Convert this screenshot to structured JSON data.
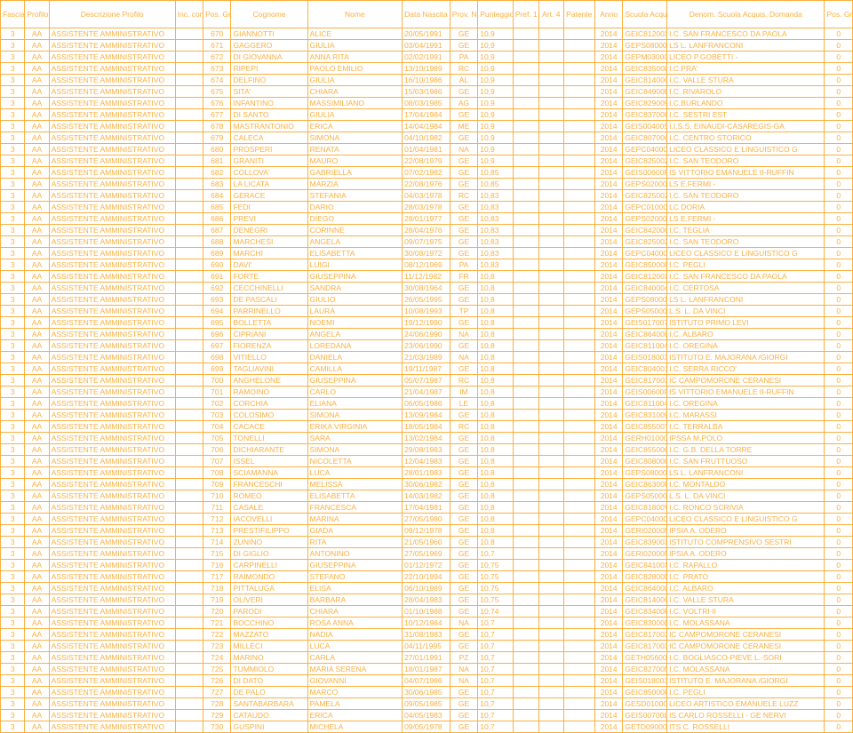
{
  "columns": [
    {
      "key": "fascia",
      "label": "Fascia",
      "cls": "c-fascia"
    },
    {
      "key": "profilo",
      "label": "Profilo",
      "cls": "c-profilo"
    },
    {
      "key": "descr",
      "label": "Descrizione Profilo",
      "cls": "c-descr"
    },
    {
      "key": "ris",
      "label": "Inc. con Riserva",
      "cls": "c-ris"
    },
    {
      "key": "grad",
      "label": "Pos. Graduatoria",
      "cls": "c-grad"
    },
    {
      "key": "cognome",
      "label": "Cognome",
      "cls": "c-cognome"
    },
    {
      "key": "nome",
      "label": "Nome",
      "cls": "c-nome"
    },
    {
      "key": "data",
      "label": "Data Nascita",
      "cls": "c-data"
    },
    {
      "key": "prov",
      "label": "Prov. Nascita",
      "cls": "c-prov"
    },
    {
      "key": "punt",
      "label": "Punteggio",
      "cls": "c-punt"
    },
    {
      "key": "pref",
      "label": "Pref. 1",
      "cls": "c-pref"
    },
    {
      "key": "art",
      "label": "Art. 4",
      "cls": "c-art"
    },
    {
      "key": "pat",
      "label": "Patente",
      "cls": "c-pat"
    },
    {
      "key": "anno",
      "label": "Anno",
      "cls": "c-anno"
    },
    {
      "key": "scuola",
      "label": "Scuola Acquis. Domanda",
      "cls": "c-scuola"
    },
    {
      "key": "denom",
      "label": "Denom. Scuola Acquis. Domanda",
      "cls": "c-denom"
    },
    {
      "key": "posprov",
      "label": "Pos. Grad. Prov.",
      "cls": "c-posprov"
    }
  ],
  "rows": [
    [
      "3",
      "AA",
      "ASSISTENTE AMMINISTRATIVO",
      "",
      "670",
      "GIANNOTTI",
      "ALICE",
      "20/05/1991",
      "GE",
      "10,9",
      "",
      "",
      "",
      "2014",
      "GEIC81200X",
      "I.C.  SAN FRANCESCO DA PAOLA",
      "0"
    ],
    [
      "3",
      "AA",
      "ASSISTENTE AMMINISTRATIVO",
      "",
      "671",
      "GAGGERO",
      "GIULIA",
      "03/04/1991",
      "GE",
      "10,9",
      "",
      "",
      "",
      "2014",
      "GEPS080004",
      "LS L. LANFRANCONI",
      "0"
    ],
    [
      "3",
      "AA",
      "ASSISTENTE AMMINISTRATIVO",
      "",
      "672",
      "DI GIOVANNA",
      "ANNA RITA",
      "02/02/1991",
      "PA",
      "10,9",
      "",
      "",
      "",
      "2014",
      "GEPM030004",
      "LICEO  P.GOBETTI -",
      "0"
    ],
    [
      "3",
      "AA",
      "ASSISTENTE AMMINISTRATIVO",
      "",
      "673",
      "RIPEPI",
      "PAOLO EMILIO",
      "13/10/1989",
      "RC",
      "10,9",
      "",
      "",
      "",
      "2014",
      "GEIC83500L",
      "I.C.PRA'",
      "0"
    ],
    [
      "3",
      "AA",
      "ASSISTENTE AMMINISTRATIVO",
      "",
      "674",
      "DELFINO",
      "GIULIA",
      "16/10/1986",
      "AL",
      "10,9",
      "",
      "",
      "",
      "2014",
      "GEIC81400G",
      "I.C. VALLE STURA",
      "0"
    ],
    [
      "3",
      "AA",
      "ASSISTENTE AMMINISTRATIVO",
      "",
      "675",
      "SITA'",
      "CHIARA",
      "15/03/1986",
      "GE",
      "10,9",
      "",
      "",
      "",
      "2014",
      "GEIC84900E",
      "I.C. RIVAROLO",
      "0"
    ],
    [
      "3",
      "AA",
      "ASSISTENTE AMMINISTRATIVO",
      "",
      "676",
      "INFANTINO",
      "MASSIMILIANO",
      "08/03/1985",
      "AG",
      "10,9",
      "",
      "",
      "",
      "2014",
      "GEIC829009",
      "I.C.BURLANDO",
      "0"
    ],
    [
      "3",
      "AA",
      "ASSISTENTE AMMINISTRATIVO",
      "",
      "677",
      "DI SANTO",
      "GIULIA",
      "17/04/1984",
      "GE",
      "10,9",
      "",
      "",
      "",
      "2014",
      "GEIC837008",
      "I.C. SESTRI EST",
      "0"
    ],
    [
      "3",
      "AA",
      "ASSISTENTE AMMINISTRATIVO",
      "",
      "678",
      "MASTRANTONIO",
      "ERICA",
      "14/04/1984",
      "ME",
      "10,9",
      "",
      "",
      "",
      "2014",
      "GEIS004005",
      "I.I.S.S.  EINAUDI-CASAREGIS-GA",
      "0"
    ],
    [
      "3",
      "AA",
      "ASSISTENTE AMMINISTRATIVO",
      "",
      "679",
      "CALECA",
      "SIMONA",
      "04/10/1982",
      "GE",
      "10,9",
      "",
      "",
      "",
      "2014",
      "GEIC80700C",
      "I.C.  CENTRO STORICO",
      "0"
    ],
    [
      "3",
      "AA",
      "ASSISTENTE AMMINISTRATIVO",
      "",
      "680",
      "PROSPERI",
      "RENATA",
      "01/04/1981",
      "NA",
      "10,9",
      "",
      "",
      "",
      "2014",
      "GEPC04000E",
      "LICEO CLASSICO E LINGUISTICO G",
      "0"
    ],
    [
      "3",
      "AA",
      "ASSISTENTE AMMINISTRATIVO",
      "",
      "681",
      "GRANITI",
      "MAURO",
      "22/08/1979",
      "GE",
      "10,9",
      "",
      "",
      "",
      "2014",
      "GEIC825002",
      "I.C. SAN TEODORO",
      "0"
    ],
    [
      "3",
      "AA",
      "ASSISTENTE AMMINISTRATIVO",
      "",
      "682",
      "COLLOVA'",
      "GABRIELLA",
      "07/02/1982",
      "GE",
      "10,85",
      "",
      "",
      "",
      "2014",
      "GEIS00600R",
      "IS VITTORIO EMANUELE II-RUFFIN",
      "0"
    ],
    [
      "3",
      "AA",
      "ASSISTENTE AMMINISTRATIVO",
      "",
      "683",
      "LA LICATA",
      "MARZIA",
      "22/08/1976",
      "GE",
      "10,85",
      "",
      "",
      "",
      "2014",
      "GEPS02000C",
      "LS E.FERMI -",
      "0"
    ],
    [
      "3",
      "AA",
      "ASSISTENTE AMMINISTRATIVO",
      "",
      "684",
      "GERACE",
      "STEFANIA",
      "04/03/1978",
      "RC",
      "10,83",
      "",
      "",
      "",
      "2014",
      "GEIC825002",
      "I.C. SAN TEODORO",
      "0"
    ],
    [
      "3",
      "AA",
      "ASSISTENTE AMMINISTRATIVO",
      "",
      "685",
      "FEDI",
      "DARIO",
      "28/03/1978",
      "GE",
      "10,83",
      "",
      "",
      "",
      "2014",
      "GEPC01000P",
      "LC DORIA",
      "0"
    ],
    [
      "3",
      "AA",
      "ASSISTENTE AMMINISTRATIVO",
      "",
      "686",
      "PREVI",
      "DIEGO",
      "28/01/1977",
      "GE",
      "10,83",
      "",
      "",
      "",
      "2014",
      "GEPS02000C",
      "LS E.FERMI -",
      "0"
    ],
    [
      "3",
      "AA",
      "ASSISTENTE AMMINISTRATIVO",
      "",
      "687",
      "DENEGRI",
      "CORINNE",
      "28/04/1976",
      "GE",
      "10,83",
      "",
      "",
      "",
      "2014",
      "GEIC84200Q",
      "I.C. TEGLIA",
      "0"
    ],
    [
      "3",
      "AA",
      "ASSISTENTE AMMINISTRATIVO",
      "",
      "688",
      "MARCHESI",
      "ANGELA",
      "09/07/1975",
      "GE",
      "10,83",
      "",
      "",
      "",
      "2014",
      "GEIC825002",
      "I.C.  SAN TEODORO",
      "0"
    ],
    [
      "3",
      "AA",
      "ASSISTENTE AMMINISTRATIVO",
      "",
      "689",
      "MARCHI",
      "ELISABETTA",
      "30/08/1972",
      "GE",
      "10,83",
      "",
      "",
      "",
      "2014",
      "GEPC04000E",
      "LICEO CLASSICO E LINGUISTICO G",
      "0"
    ],
    [
      "3",
      "AA",
      "ASSISTENTE AMMINISTRATIVO",
      "",
      "690",
      "DAVI'",
      "LUIGI",
      "08/12/1969",
      "PA",
      "10,83",
      "",
      "",
      "",
      "2014",
      "GEIC85000P",
      "I.C. PEGLI",
      "0"
    ],
    [
      "3",
      "AA",
      "ASSISTENTE AMMINISTRATIVO",
      "",
      "691",
      "FORTE",
      "GIUSEPPINA",
      "11/12/1982",
      "FR",
      "10,8",
      "",
      "",
      "",
      "2014",
      "GEIC81200X",
      "I.C.  SAN FRANCESCO DA PAOLA",
      "0"
    ],
    [
      "3",
      "AA",
      "ASSISTENTE AMMINISTRATIVO",
      "",
      "692",
      "CECCHINELLI",
      "SANDRA",
      "30/08/1964",
      "GE",
      "10,8",
      "",
      "",
      "",
      "2014",
      "GEIC840004",
      "I.C. CERTOSA",
      "0"
    ],
    [
      "3",
      "AA",
      "ASSISTENTE AMMINISTRATIVO",
      "",
      "693",
      "DE PASCALI",
      "GIULIO",
      "26/05/1995",
      "GE",
      "10,8",
      "",
      "",
      "",
      "2014",
      "GEPS080004",
      "LS L. LANFRANCONI",
      "0"
    ],
    [
      "3",
      "AA",
      "ASSISTENTE AMMINISTRATIVO",
      "",
      "694",
      "PARRINELLO",
      "LAURA",
      "10/08/1993",
      "TP",
      "10,8",
      "",
      "",
      "",
      "2014",
      "GEPS050008",
      "L.S.  L. DA VINCI",
      "0"
    ],
    [
      "3",
      "AA",
      "ASSISTENTE AMMINISTRATIVO",
      "",
      "695",
      "BOLLETTA",
      "NOEMI",
      "19/12/1990",
      "GE",
      "10,8",
      "",
      "",
      "",
      "2014",
      "GEIS017007",
      "ISTITUTO  PRIMO LEVI",
      "0"
    ],
    [
      "3",
      "AA",
      "ASSISTENTE AMMINISTRATIVO",
      "",
      "696",
      "CIPRIANI",
      "ANGELA",
      "24/06/1990",
      "NA",
      "10,8",
      "",
      "",
      "",
      "2014",
      "GEIC86400L",
      "I.C. ALBARO",
      "0"
    ],
    [
      "3",
      "AA",
      "ASSISTENTE AMMINISTRATIVO",
      "",
      "697",
      "FIORENZA",
      "LOREDANA",
      "23/06/1990",
      "GE",
      "10,8",
      "",
      "",
      "",
      "2014",
      "GEIC811004",
      "I.C. OREGINA",
      "0"
    ],
    [
      "3",
      "AA",
      "ASSISTENTE AMMINISTRATIVO",
      "",
      "698",
      "VITIELLO",
      "DANIELA",
      "21/03/1989",
      "NA",
      "10,8",
      "",
      "",
      "",
      "2014",
      "GEIS018003",
      "ISTITUTO  E. MAJORANA /GIORGI",
      "0"
    ],
    [
      "3",
      "AA",
      "ASSISTENTE AMMINISTRATIVO",
      "",
      "699",
      "TAGLIAVINI",
      "CAMILLA",
      "19/11/1987",
      "GE",
      "10,8",
      "",
      "",
      "",
      "2014",
      "GEIC804001",
      "I.C. SERRA RICCO'",
      "0"
    ],
    [
      "3",
      "AA",
      "ASSISTENTE AMMINISTRATIVO",
      "",
      "700",
      "ANGHELONE",
      "GIUSEPPINA",
      "05/07/1987",
      "RC",
      "10,8",
      "",
      "",
      "",
      "2014",
      "GEIC817003",
      "IC CAMPOMORONE CERANESI",
      "0"
    ],
    [
      "3",
      "AA",
      "ASSISTENTE AMMINISTRATIVO",
      "",
      "701",
      "RAMOINO",
      "CARLO",
      "21/04/1987",
      "IM",
      "10,8",
      "",
      "",
      "",
      "2014",
      "GEIS00600R",
      "IS VITTORIO EMANUELE II-RUFFIN",
      "0"
    ],
    [
      "3",
      "AA",
      "ASSISTENTE AMMINISTRATIVO",
      "",
      "702",
      "CORCHIA",
      "ELIANA",
      "06/05/1986",
      "LE",
      "10,8",
      "",
      "",
      "",
      "2014",
      "GEIC811004",
      "I.C. OREGINA",
      "0"
    ],
    [
      "3",
      "AA",
      "ASSISTENTE AMMINISTRATIVO",
      "",
      "703",
      "COLOSIMO",
      "SIMONA",
      "13/09/1984",
      "GE",
      "10,8",
      "",
      "",
      "",
      "2014",
      "GEIC831009",
      "I.C. MARASSI",
      "0"
    ],
    [
      "3",
      "AA",
      "ASSISTENTE AMMINISTRATIVO",
      "",
      "704",
      "CACACE",
      "ERIKA VIRGINIA",
      "18/05/1984",
      "RC",
      "10,8",
      "",
      "",
      "",
      "2014",
      "GEIC85500T",
      "I.C. TERRALBA",
      "0"
    ],
    [
      "3",
      "AA",
      "ASSISTENTE AMMINISTRATIVO",
      "",
      "705",
      "TONELLI",
      "SARA",
      "13/02/1984",
      "GE",
      "10,8",
      "",
      "",
      "",
      "2014",
      "GERH01000G",
      "IPSSA  M.POLO",
      "0"
    ],
    [
      "3",
      "AA",
      "ASSISTENTE AMMINISTRATIVO",
      "",
      "706",
      "DICHIARANTE",
      "SIMONA",
      "29/08/1983",
      "GE",
      "10,8",
      "",
      "",
      "",
      "2014",
      "GEIC85500G",
      "I.C.  G.B. DELLA TORRE",
      "0"
    ],
    [
      "3",
      "AA",
      "ASSISTENTE AMMINISTRATIVO",
      "",
      "707",
      "ISSEL",
      "NICOLETTA",
      "12/04/1983",
      "GE",
      "10,8",
      "",
      "",
      "",
      "2014",
      "GEIC808008",
      "I.C. SAN FRUTTUOSO",
      "0"
    ],
    [
      "3",
      "AA",
      "ASSISTENTE AMMINISTRATIVO",
      "",
      "708",
      "SCIAMANNA",
      "LUCA",
      "28/01/1983",
      "GE",
      "10,8",
      "",
      "",
      "",
      "2014",
      "GEPS080004",
      "LS L. LANFRANCONI",
      "0"
    ],
    [
      "3",
      "AA",
      "ASSISTENTE AMMINISTRATIVO",
      "",
      "709",
      "FRANCESCHI",
      "MELISSA",
      "30/06/1982",
      "GE",
      "10,8",
      "",
      "",
      "",
      "2014",
      "GEIC86300R",
      "I.C.  MONTALDO",
      "0"
    ],
    [
      "3",
      "AA",
      "ASSISTENTE AMMINISTRATIVO",
      "",
      "710",
      "ROMEO",
      "ELISABETTA",
      "14/03/1982",
      "GE",
      "10,8",
      "",
      "",
      "",
      "2014",
      "GEPS050008",
      "L.S.  L. DA VINCI",
      "0"
    ],
    [
      "3",
      "AA",
      "ASSISTENTE AMMINISTRATIVO",
      "",
      "711",
      "CASALE",
      "FRANCESCA",
      "17/04/1981",
      "GE",
      "10,8",
      "",
      "",
      "",
      "2014",
      "GEIC81800V",
      "I.C.  RONCO SCRIVIA",
      "0"
    ],
    [
      "3",
      "AA",
      "ASSISTENTE AMMINISTRATIVO",
      "",
      "712",
      "IACOVELLI",
      "MARINA",
      "27/05/1980",
      "GE",
      "10,8",
      "",
      "",
      "",
      "2014",
      "GEPC04000E",
      "LICEO CLASSICO E LINGUISTICO G",
      "0"
    ],
    [
      "3",
      "AA",
      "ASSISTENTE AMMINISTRATIVO",
      "",
      "713",
      "PRESTIFILIPPO",
      "GIADA",
      "09/12/1978",
      "GE",
      "10,8",
      "",
      "",
      "",
      "2014",
      "GERI02000N",
      "IPSIA  A. ODERO",
      "0"
    ],
    [
      "3",
      "AA",
      "ASSISTENTE AMMINISTRATIVO",
      "",
      "714",
      "ZUNINO",
      "RITA",
      "21/05/1960",
      "GE",
      "10,8",
      "",
      "",
      "",
      "2014",
      "GEIC83900X",
      "ISTITUTO COMPRENSIVO SESTRI",
      "0"
    ],
    [
      "3",
      "AA",
      "ASSISTENTE AMMINISTRATIVO",
      "",
      "715",
      "DI GIGLIO",
      "ANTONINO",
      "27/05/1969",
      "GE",
      "10,7",
      "",
      "",
      "",
      "2014",
      "GERI02000N",
      "IPSIA  A. ODERO",
      "0"
    ],
    [
      "3",
      "AA",
      "ASSISTENTE AMMINISTRATIVO",
      "",
      "716",
      "CARPINELLI",
      "GIUSEPPINA",
      "01/12/1972",
      "GE",
      "10,75",
      "",
      "",
      "",
      "2014",
      "GEIC84100X",
      "I.C. RAPALLO",
      "0"
    ],
    [
      "3",
      "AA",
      "ASSISTENTE AMMINISTRATIVO",
      "",
      "717",
      "RAIMONDO",
      "STEFANO",
      "22/10/1994",
      "GE",
      "10,75",
      "",
      "",
      "",
      "2014",
      "GEIC82800D",
      "I.C. PRATO",
      "0"
    ],
    [
      "3",
      "AA",
      "ASSISTENTE AMMINISTRATIVO",
      "",
      "718",
      "PITTALUGA",
      "ELISA",
      "06/10/1989",
      "GE",
      "10,75",
      "",
      "",
      "",
      "2014",
      "GEIC86400L",
      "I.C. ALBARO",
      "0"
    ],
    [
      "3",
      "AA",
      "ASSISTENTE AMMINISTRATIVO",
      "",
      "719",
      "OLIVERI",
      "BARBARA",
      "28/04/1983",
      "GE",
      "10,75",
      "",
      "",
      "",
      "2014",
      "GEIC81400G",
      "I.C. VALLE STURA",
      "0"
    ],
    [
      "3",
      "AA",
      "ASSISTENTE AMMINISTRATIVO",
      "",
      "720",
      "PARODI",
      "CHIARA",
      "01/10/1988",
      "GE",
      "10,74",
      "",
      "",
      "",
      "2014",
      "GEIC83400R",
      "I.C.  VOLTRI  II",
      "0"
    ],
    [
      "3",
      "AA",
      "ASSISTENTE AMMINISTRATIVO",
      "",
      "721",
      "BOCCHINO",
      "ROSA ANNA",
      "10/12/1984",
      "NA",
      "10,7",
      "",
      "",
      "",
      "2014",
      "GEIC83000D",
      "I.C.   MOLASSANA",
      "0"
    ],
    [
      "3",
      "AA",
      "ASSISTENTE AMMINISTRATIVO",
      "",
      "722",
      "MAZZATO",
      "NADIA",
      "31/08/1983",
      "GE",
      "10,7",
      "",
      "",
      "",
      "2014",
      "GEIC817003",
      "IC CAMPOMORONE CERANESI",
      "0"
    ],
    [
      "3",
      "AA",
      "ASSISTENTE AMMINISTRATIVO",
      "",
      "723",
      "MILLÈCI",
      "LUCA",
      "04/11/1995",
      "GE",
      "10,7",
      "",
      "",
      "",
      "2014",
      "GEIC817003",
      "IC CAMPOMORONE CERANESI",
      "0"
    ],
    [
      "3",
      "AA",
      "ASSISTENTE AMMINISTRATIVO",
      "",
      "724",
      "MARINO",
      "CARLA",
      "27/01/1991",
      "PZ",
      "10,7",
      "",
      "",
      "",
      "2014",
      "GETH056000",
      "I.C. BOGLIASCO-PIEVE L.-SORI",
      "0"
    ],
    [
      "3",
      "AA",
      "ASSISTENTE AMMINISTRATIVO",
      "",
      "725",
      "TUMMIOLO",
      "MARIA SERENA",
      "18/01/1987",
      "NA",
      "10,7",
      "",
      "",
      "",
      "2014",
      "GEIC82700N",
      "I.C.  MOLASSANA",
      "0"
    ],
    [
      "3",
      "AA",
      "ASSISTENTE AMMINISTRATIVO",
      "",
      "726",
      "DI DATO",
      "GIOVANNI",
      "04/07/1986",
      "NA",
      "10,7",
      "",
      "",
      "",
      "2014",
      "GEIS018003",
      "ISTITUTO  E. MAJORANA /GIORGI",
      "0"
    ],
    [
      "3",
      "AA",
      "ASSISTENTE AMMINISTRATIVO",
      "",
      "727",
      "DE PALO",
      "MARCO",
      "30/06/1985",
      "GE",
      "10,7",
      "",
      "",
      "",
      "2014",
      "GEIC85000P",
      "I.C. PEGLI",
      "0"
    ],
    [
      "3",
      "AA",
      "ASSISTENTE AMMINISTRATIVO",
      "",
      "728",
      "SANTABARBARA",
      "PAMELA",
      "09/05/1985",
      "GE",
      "10,7",
      "",
      "",
      "",
      "2014",
      "GESD010008",
      "LICEO ARTISTICO  EMANUELE LUZZ",
      "0"
    ],
    [
      "3",
      "AA",
      "ASSISTENTE AMMINISTRATIVO",
      "",
      "729",
      "CATAUDO",
      "ERICA",
      "04/05/1983",
      "GE",
      "10,7",
      "",
      "",
      "",
      "2014",
      "GEIS00700L",
      "IS CARLO ROSSELLI - GE NERVI",
      "0"
    ],
    [
      "3",
      "AA",
      "ASSISTENTE AMMINISTRATIVO",
      "",
      "730",
      "GUSPINI",
      "MICHELA",
      "09/05/1978",
      "GE",
      "10,7",
      "",
      "",
      "",
      "2014",
      "GETD09000E",
      "ITS  C. ROSSELLI",
      "0"
    ]
  ],
  "colors": {
    "text": "#fbb040",
    "bg": "#ffffff"
  }
}
